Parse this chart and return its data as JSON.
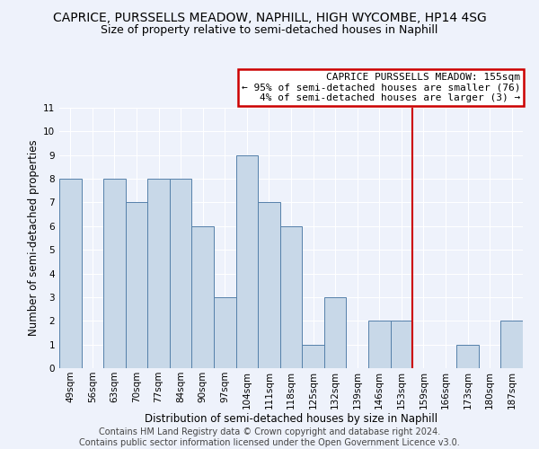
{
  "title": "CAPRICE, PURSSELLS MEADOW, NAPHILL, HIGH WYCOMBE, HP14 4SG",
  "subtitle": "Size of property relative to semi-detached houses in Naphill",
  "xlabel": "Distribution of semi-detached houses by size in Naphill",
  "ylabel": "Number of semi-detached properties",
  "categories": [
    "49sqm",
    "56sqm",
    "63sqm",
    "70sqm",
    "77sqm",
    "84sqm",
    "90sqm",
    "97sqm",
    "104sqm",
    "111sqm",
    "118sqm",
    "125sqm",
    "132sqm",
    "139sqm",
    "146sqm",
    "153sqm",
    "159sqm",
    "166sqm",
    "173sqm",
    "180sqm",
    "187sqm"
  ],
  "values": [
    8,
    0,
    8,
    7,
    8,
    8,
    6,
    3,
    9,
    7,
    6,
    1,
    3,
    0,
    2,
    2,
    0,
    0,
    1,
    0,
    2
  ],
  "bar_color": "#c8d8e8",
  "bar_edge_color": "#5580aa",
  "background_color": "#eef2fb",
  "grid_color": "#ffffff",
  "vline_x": 15.5,
  "vline_color": "#cc0000",
  "annotation_title": "CAPRICE PURSSELLS MEADOW: 155sqm",
  "annotation_line1": "← 95% of semi-detached houses are smaller (76)",
  "annotation_line2": "4% of semi-detached houses are larger (3) →",
  "annotation_box_color": "#cc0000",
  "ylim": [
    0,
    11
  ],
  "yticks": [
    0,
    1,
    2,
    3,
    4,
    5,
    6,
    7,
    8,
    9,
    10,
    11
  ],
  "footer_line1": "Contains HM Land Registry data © Crown copyright and database right 2024.",
  "footer_line2": "Contains public sector information licensed under the Open Government Licence v3.0.",
  "title_fontsize": 10,
  "subtitle_fontsize": 9,
  "axis_label_fontsize": 8.5,
  "tick_fontsize": 7.5,
  "footer_fontsize": 7,
  "ann_fontsize": 8
}
